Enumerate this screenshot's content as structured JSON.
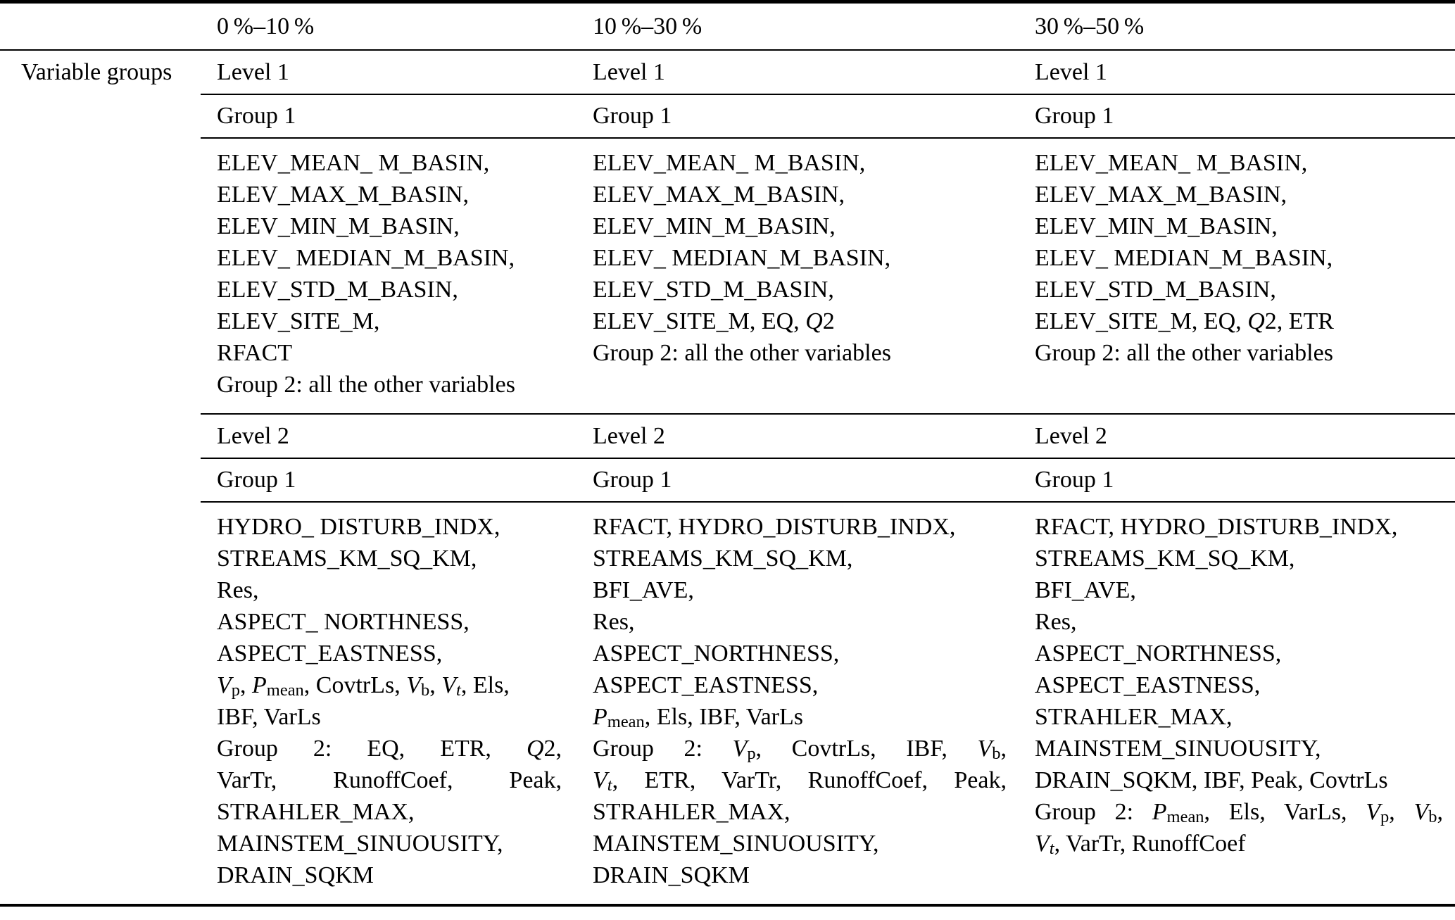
{
  "colors": {
    "text": "#000000",
    "rule": "#000000",
    "background": "#ffffff"
  },
  "table": {
    "row_label": "Variable groups",
    "columns": [
      {
        "header": "0 %–10 %",
        "level1_label": "Level 1",
        "level1_group_label": "Group 1",
        "level1_lines": [
          {
            "justify": false,
            "segments": [
              "ELEV_MEAN_ M_BASIN,"
            ]
          },
          {
            "justify": false,
            "segments": [
              "ELEV_MAX_M_BASIN,"
            ]
          },
          {
            "justify": false,
            "segments": [
              "ELEV_MIN_M_BASIN,"
            ]
          },
          {
            "justify": false,
            "segments": [
              "ELEV_ MEDIAN_M_BASIN,"
            ]
          },
          {
            "justify": false,
            "segments": [
              "ELEV_STD_M_BASIN,"
            ]
          },
          {
            "justify": false,
            "segments": [
              "ELEV_SITE_M,"
            ]
          },
          {
            "justify": false,
            "segments": [
              "RFACT"
            ]
          },
          {
            "justify": false,
            "segments": [
              "Group 2: all the other variables"
            ]
          }
        ],
        "level2_label": "Level 2",
        "level2_group_label": "Group 1",
        "level2_lines": [
          {
            "justify": false,
            "segments": [
              "HYDRO_ DISTURB_INDX,"
            ]
          },
          {
            "justify": false,
            "segments": [
              "STREAMS_KM_SQ_KM,"
            ]
          },
          {
            "justify": false,
            "segments": [
              "Res,"
            ]
          },
          {
            "justify": false,
            "segments": [
              "ASPECT_ NORTHNESS,"
            ]
          },
          {
            "justify": false,
            "segments": [
              "ASPECT_EASTNESS,"
            ]
          },
          {
            "justify": false,
            "segments": [
              {
                "style": "i",
                "text": "V"
              },
              {
                "style": "sub",
                "text": "p"
              },
              ", ",
              {
                "style": "i",
                "text": "P"
              },
              {
                "style": "sub",
                "text": "mean"
              },
              ", CovtrLs, ",
              {
                "style": "i",
                "text": "V"
              },
              {
                "style": "sub",
                "text": "b"
              },
              ", ",
              {
                "style": "i",
                "text": "V"
              },
              {
                "style": "isub",
                "text": "t"
              },
              ", Els,"
            ]
          },
          {
            "justify": false,
            "segments": [
              "IBF, VarLs"
            ]
          },
          {
            "justify": true,
            "segments": [
              "Group 2: EQ, ETR, ",
              {
                "style": "i",
                "text": "Q"
              },
              "2,"
            ]
          },
          {
            "justify": true,
            "segments": [
              "VarTr, RunoffCoef, Peak,"
            ]
          },
          {
            "justify": false,
            "segments": [
              "STRAHLER_MAX,"
            ]
          },
          {
            "justify": false,
            "segments": [
              "MAINSTEM_SINUOUSITY,"
            ]
          },
          {
            "justify": false,
            "segments": [
              "DRAIN_SQKM"
            ]
          }
        ]
      },
      {
        "header": "10 %–30 %",
        "level1_label": "Level 1",
        "level1_group_label": "Group 1",
        "level1_lines": [
          {
            "justify": false,
            "segments": [
              "ELEV_MEAN_ M_BASIN,"
            ]
          },
          {
            "justify": false,
            "segments": [
              "ELEV_MAX_M_BASIN,"
            ]
          },
          {
            "justify": false,
            "segments": [
              "ELEV_MIN_M_BASIN,"
            ]
          },
          {
            "justify": false,
            "segments": [
              "ELEV_ MEDIAN_M_BASIN,"
            ]
          },
          {
            "justify": false,
            "segments": [
              "ELEV_STD_M_BASIN,"
            ]
          },
          {
            "justify": false,
            "segments": [
              "ELEV_SITE_M, EQ, ",
              {
                "style": "i",
                "text": "Q"
              },
              "2"
            ]
          },
          {
            "justify": false,
            "segments": [
              "Group 2: all the other variables"
            ]
          }
        ],
        "level2_label": "Level 2",
        "level2_group_label": "Group 1",
        "level2_lines": [
          {
            "justify": false,
            "segments": [
              "RFACT, HYDRO_DISTURB_INDX,"
            ]
          },
          {
            "justify": false,
            "segments": [
              "STREAMS_KM_SQ_KM,"
            ]
          },
          {
            "justify": false,
            "segments": [
              "BFI_AVE,"
            ]
          },
          {
            "justify": false,
            "segments": [
              "Res,"
            ]
          },
          {
            "justify": false,
            "segments": [
              "ASPECT_NORTHNESS,"
            ]
          },
          {
            "justify": false,
            "segments": [
              "ASPECT_EASTNESS,"
            ]
          },
          {
            "justify": false,
            "segments": [
              {
                "style": "i",
                "text": "P"
              },
              {
                "style": "sub",
                "text": "mean"
              },
              ", Els, IBF, VarLs"
            ]
          },
          {
            "justify": true,
            "segments": [
              "Group 2: ",
              {
                "style": "i",
                "text": "V"
              },
              {
                "style": "sub",
                "text": "p"
              },
              ", CovtrLs, IBF, ",
              {
                "style": "i",
                "text": "V"
              },
              {
                "style": "sub",
                "text": "b"
              },
              ","
            ]
          },
          {
            "justify": true,
            "segments": [
              {
                "style": "i",
                "text": "V"
              },
              {
                "style": "isub",
                "text": "t"
              },
              ", ETR, VarTr, RunoffCoef, Peak,"
            ]
          },
          {
            "justify": false,
            "segments": [
              "STRAHLER_MAX,"
            ]
          },
          {
            "justify": false,
            "segments": [
              "MAINSTEM_SINUOUSITY,"
            ]
          },
          {
            "justify": false,
            "segments": [
              "DRAIN_SQKM"
            ]
          }
        ]
      },
      {
        "header": "30 %–50 %",
        "level1_label": "Level 1",
        "level1_group_label": "Group 1",
        "level1_lines": [
          {
            "justify": false,
            "segments": [
              "ELEV_MEAN_ M_BASIN,"
            ]
          },
          {
            "justify": false,
            "segments": [
              "ELEV_MAX_M_BASIN,"
            ]
          },
          {
            "justify": false,
            "segments": [
              "ELEV_MIN_M_BASIN,"
            ]
          },
          {
            "justify": false,
            "segments": [
              "ELEV_ MEDIAN_M_BASIN,"
            ]
          },
          {
            "justify": false,
            "segments": [
              "ELEV_STD_M_BASIN,"
            ]
          },
          {
            "justify": false,
            "segments": [
              "ELEV_SITE_M, EQ, ",
              {
                "style": "i",
                "text": "Q"
              },
              "2, ETR"
            ]
          },
          {
            "justify": false,
            "segments": [
              "Group 2: all the other variables"
            ]
          }
        ],
        "level2_label": "Level 2",
        "level2_group_label": "Group 1",
        "level2_lines": [
          {
            "justify": false,
            "segments": [
              "RFACT, HYDRO_DISTURB_INDX,"
            ]
          },
          {
            "justify": false,
            "segments": [
              "STREAMS_KM_SQ_KM,"
            ]
          },
          {
            "justify": false,
            "segments": [
              "BFI_AVE,"
            ]
          },
          {
            "justify": false,
            "segments": [
              "Res,"
            ]
          },
          {
            "justify": false,
            "segments": [
              "ASPECT_NORTHNESS,"
            ]
          },
          {
            "justify": false,
            "segments": [
              "ASPECT_EASTNESS,"
            ]
          },
          {
            "justify": false,
            "segments": [
              "STRAHLER_MAX,"
            ]
          },
          {
            "justify": false,
            "segments": [
              "MAINSTEM_SINUOUSITY,"
            ]
          },
          {
            "justify": false,
            "segments": [
              "DRAIN_SQKM, IBF, Peak, CovtrLs"
            ]
          },
          {
            "justify": true,
            "segments": [
              "Group 2: ",
              {
                "style": "i",
                "text": "P"
              },
              {
                "style": "sub",
                "text": "mean"
              },
              ", Els, VarLs, ",
              {
                "style": "i",
                "text": "V"
              },
              {
                "style": "sub",
                "text": "p"
              },
              ", ",
              {
                "style": "i",
                "text": "V"
              },
              {
                "style": "sub",
                "text": "b"
              },
              ","
            ]
          },
          {
            "justify": false,
            "segments": [
              {
                "style": "i",
                "text": "V"
              },
              {
                "style": "isub",
                "text": "t"
              },
              ", VarTr, RunoffCoef"
            ]
          }
        ]
      }
    ]
  }
}
